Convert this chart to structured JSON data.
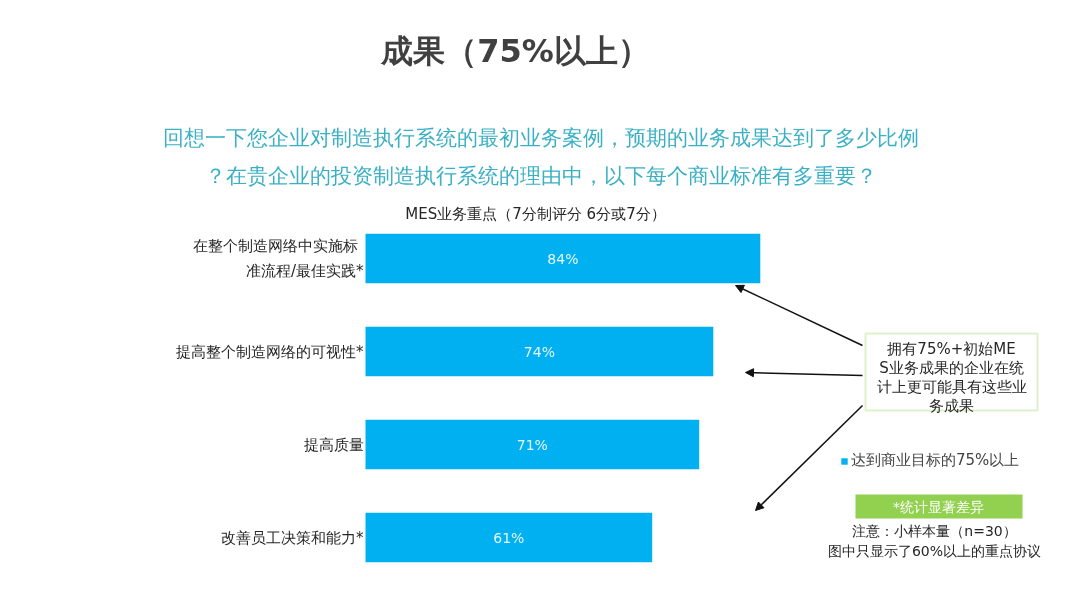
{
  "chart_data": {
    "type": "bar",
    "orientation": "horizontal",
    "title": "成果（75%以上）",
    "subtitle": "回想一下您企业对制造执行系统的最初业务案例，预期的业务成果达到了多少比例？在贵企业的投资制造执行系统的理由中，以下每个商业标准有多重要？",
    "xlabel": "MES业务重点（7分制评分 6分或7分）",
    "categories": [
      "在整个制造网络中实施标准流程/最佳实践*",
      "提高整个制造网络的可视性*",
      "提高质量",
      "改善员工决策和能力*"
    ],
    "series": [
      {
        "name": "达到商业目标的75%以上",
        "color": "#00b0f0",
        "values": [
          84,
          74,
          71,
          61
        ],
        "value_labels": [
          "84%",
          "74%",
          "71%",
          "61%"
        ]
      }
    ],
    "legend": "right",
    "annotations": [
      "拥有75%+初始MES业务成果的企业在统计上更可能具有这些业务成果",
      "*统计显著差异",
      "注意：小样本量（n=30）",
      "图中只显示了60%以上的重点协议"
    ]
  }
}
